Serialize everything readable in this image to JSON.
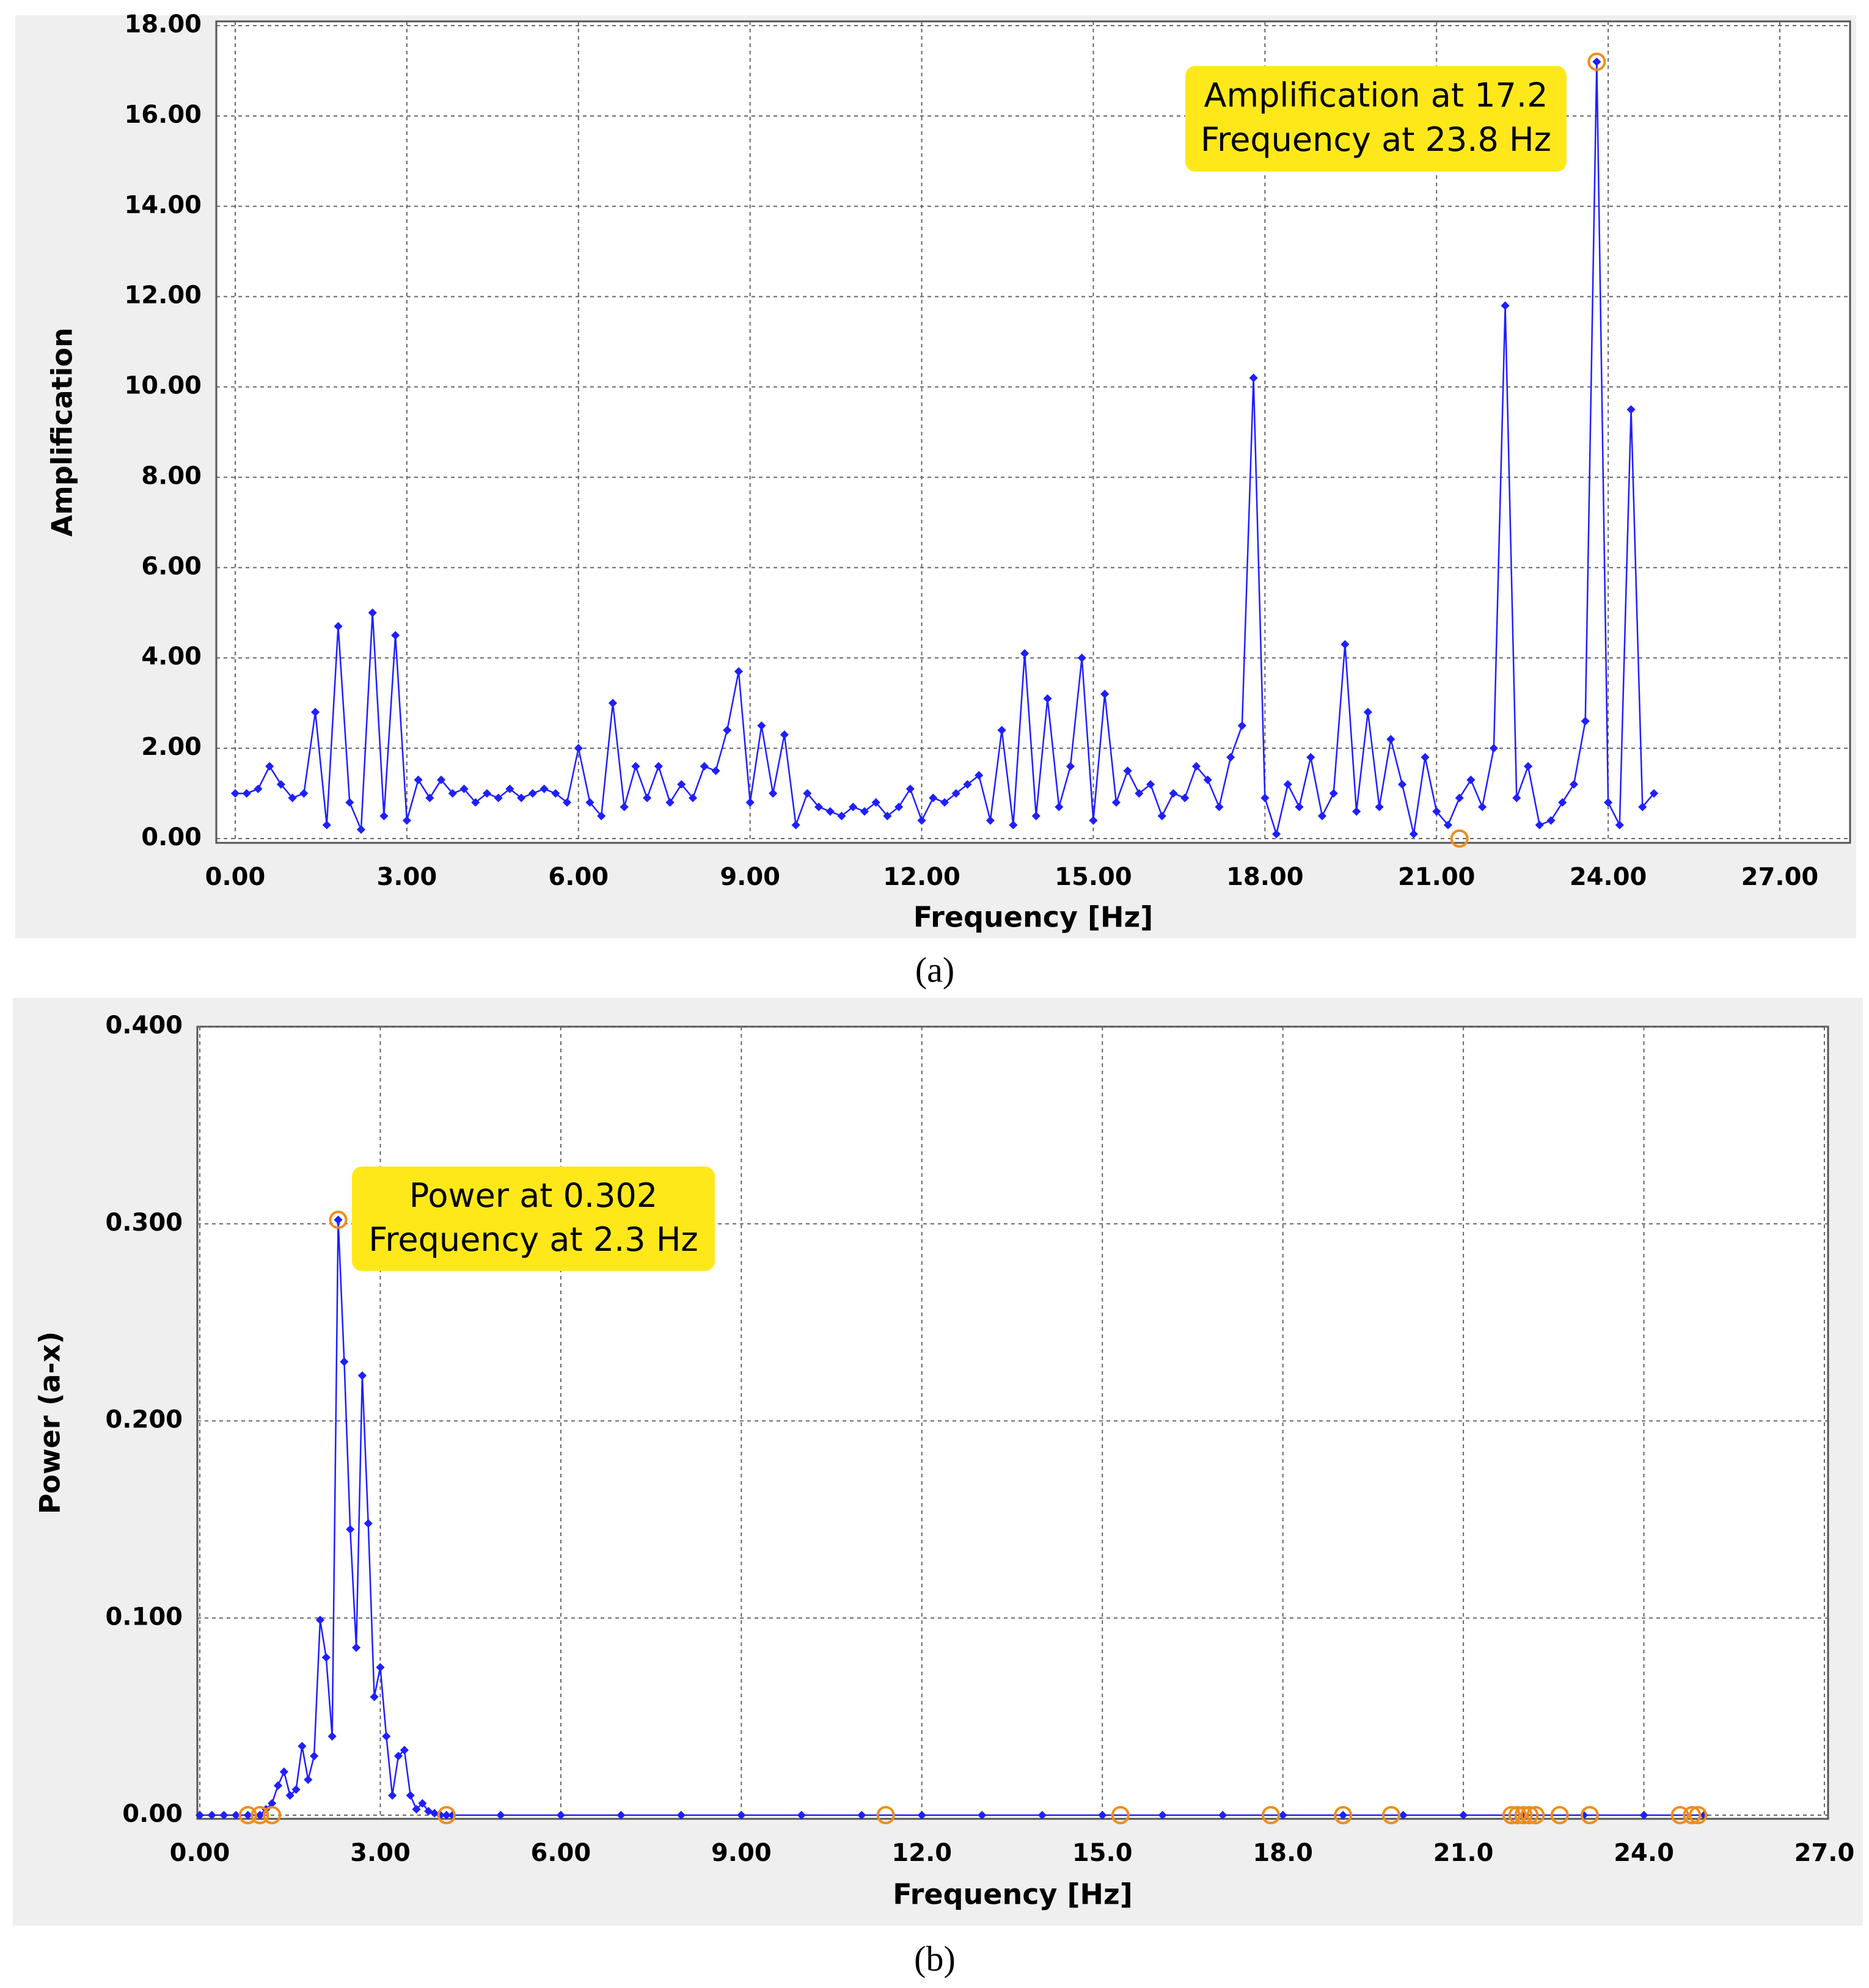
{
  "chart_data": [
    {
      "type": "line",
      "caption": "(a)",
      "x_label": "Frequency [Hz]",
      "y_label": "Amplification",
      "color": "#1f1fff",
      "x": [
        0,
        0.2,
        0.4,
        0.6,
        0.8,
        1,
        1.2,
        1.4,
        1.6,
        1.8,
        2,
        2.2,
        2.4,
        2.6,
        2.8,
        3,
        3.2,
        3.4,
        3.6,
        3.8,
        4,
        4.2,
        4.4,
        4.6,
        4.8,
        5,
        5.2,
        5.4,
        5.6,
        5.8,
        6,
        6.2,
        6.4,
        6.6,
        6.8,
        7,
        7.2,
        7.4,
        7.6,
        7.8,
        8,
        8.2,
        8.4,
        8.6,
        8.8,
        9,
        9.2,
        9.4,
        9.6,
        9.8,
        10,
        10.2,
        10.4,
        10.6,
        10.8,
        11,
        11.2,
        11.4,
        11.6,
        11.8,
        12,
        12.2,
        12.4,
        12.6,
        12.8,
        13,
        13.2,
        13.4,
        13.6,
        13.8,
        14,
        14.2,
        14.4,
        14.6,
        14.8,
        15,
        15.2,
        15.4,
        15.6,
        15.8,
        16,
        16.2,
        16.4,
        16.6,
        16.8,
        17,
        17.2,
        17.4,
        17.6,
        17.8,
        18,
        18.2,
        18.4,
        18.6,
        18.8,
        19,
        19.2,
        19.4,
        19.6,
        19.8,
        20,
        20.2,
        20.4,
        20.6,
        20.8,
        21,
        21.2,
        21.4,
        21.6,
        21.8,
        22,
        22.2,
        22.4,
        22.6,
        22.8,
        23,
        23.2,
        23.4,
        23.6,
        23.8,
        24,
        24.2,
        24.4,
        24.6,
        24.8
      ],
      "values": [
        1.0,
        1.0,
        1.1,
        1.6,
        1.2,
        0.9,
        1.0,
        2.8,
        0.3,
        4.7,
        0.8,
        0.2,
        5.0,
        0.5,
        4.5,
        0.4,
        1.3,
        0.9,
        1.3,
        1.0,
        1.1,
        0.8,
        1.0,
        0.9,
        1.1,
        0.9,
        1.0,
        1.1,
        1.0,
        0.8,
        2.0,
        0.8,
        0.5,
        3.0,
        0.7,
        1.6,
        0.9,
        1.6,
        0.8,
        1.2,
        0.9,
        1.6,
        1.5,
        2.4,
        3.7,
        0.8,
        2.5,
        1.0,
        2.3,
        0.3,
        1.0,
        0.7,
        0.6,
        0.5,
        0.7,
        0.6,
        0.8,
        0.5,
        0.7,
        1.1,
        0.4,
        0.9,
        0.8,
        1.0,
        1.2,
        1.4,
        0.4,
        2.4,
        0.3,
        4.1,
        0.5,
        3.1,
        0.7,
        1.6,
        4.0,
        0.4,
        3.2,
        0.8,
        1.5,
        1.0,
        1.2,
        0.5,
        1.0,
        0.9,
        1.6,
        1.3,
        0.7,
        1.8,
        2.5,
        10.2,
        0.9,
        0.1,
        1.2,
        0.7,
        1.8,
        0.5,
        1.0,
        4.3,
        0.6,
        2.8,
        0.7,
        2.2,
        1.2,
        0.1,
        1.8,
        0.6,
        0.3,
        0.9,
        1.3,
        0.7,
        2.0,
        11.8,
        0.9,
        1.6,
        0.3,
        0.4,
        0.8,
        1.2,
        2.6,
        17.2,
        0.8,
        0.3,
        9.5,
        0.7,
        1.0
      ],
      "xlim": [
        0,
        27
      ],
      "ylim": [
        0,
        18
      ],
      "xticks": [
        {
          "value": 0,
          "label": "0.00"
        },
        {
          "value": 3,
          "label": "3.00"
        },
        {
          "value": 6,
          "label": "6.00"
        },
        {
          "value": 9,
          "label": "9.00"
        },
        {
          "value": 12,
          "label": "12.00"
        },
        {
          "value": 15,
          "label": "15.00"
        },
        {
          "value": 18,
          "label": "18.00"
        },
        {
          "value": 21,
          "label": "21.00"
        },
        {
          "value": 24,
          "label": "24.00"
        },
        {
          "value": 27,
          "label": "27.00"
        }
      ],
      "yticks": [
        {
          "value": 0,
          "label": "0.00"
        },
        {
          "value": 2,
          "label": "2.00"
        },
        {
          "value": 4,
          "label": "4.00"
        },
        {
          "value": 6,
          "label": "6.00"
        },
        {
          "value": 8,
          "label": "8.00"
        },
        {
          "value": 10,
          "label": "10.00"
        },
        {
          "value": 12,
          "label": "12.00"
        },
        {
          "value": 14,
          "label": "14.00"
        },
        {
          "value": 16,
          "label": "16.00"
        },
        {
          "value": 18,
          "label": "18.00"
        }
      ],
      "grid": true,
      "highlights": {
        "color": "#f08c1e",
        "x": [
          23.8,
          21.4
        ],
        "y": [
          17.2,
          0
        ]
      },
      "annotation": {
        "color": "#ffe81a",
        "lines": [
          "Amplification at 17.2",
          "Frequency at 23.8 Hz"
        ]
      }
    },
    {
      "type": "line",
      "caption": "(b)",
      "x_label": "Frequency [Hz]",
      "y_label": "Power (a-x)",
      "color": "#1f1fff",
      "x": [
        0,
        0.2,
        0.4,
        0.6,
        0.8,
        1.0,
        1.1,
        1.2,
        1.3,
        1.4,
        1.5,
        1.6,
        1.7,
        1.8,
        1.9,
        2.0,
        2.1,
        2.2,
        2.3,
        2.4,
        2.5,
        2.6,
        2.7,
        2.8,
        2.9,
        3.0,
        3.1,
        3.2,
        3.3,
        3.4,
        3.5,
        3.6,
        3.7,
        3.8,
        3.9,
        4.0,
        4.1,
        4.2,
        5,
        6,
        7,
        8,
        9,
        10,
        11,
        12,
        13,
        14,
        15,
        16,
        17,
        18,
        19,
        20,
        21,
        22,
        23,
        24,
        25
      ],
      "values": [
        0,
        0,
        0,
        0,
        0,
        0,
        0.003,
        0.006,
        0.015,
        0.022,
        0.01,
        0.013,
        0.035,
        0.018,
        0.03,
        0.099,
        0.08,
        0.04,
        0.302,
        0.23,
        0.145,
        0.085,
        0.223,
        0.148,
        0.06,
        0.075,
        0.04,
        0.01,
        0.03,
        0.033,
        0.01,
        0.003,
        0.006,
        0.002,
        0.001,
        0,
        0,
        0,
        0,
        0,
        0,
        0,
        0,
        0,
        0,
        0,
        0,
        0,
        0,
        0,
        0,
        0,
        0,
        0,
        0,
        0,
        0,
        0,
        0
      ],
      "xlim": [
        0,
        27
      ],
      "ylim": [
        0,
        0.4
      ],
      "xticks": [
        {
          "value": 0,
          "label": "0.00"
        },
        {
          "value": 3,
          "label": "3.00"
        },
        {
          "value": 6,
          "label": "6.00"
        },
        {
          "value": 9,
          "label": "9.00"
        },
        {
          "value": 12,
          "label": "12.0"
        },
        {
          "value": 15,
          "label": "15.0"
        },
        {
          "value": 18,
          "label": "18.0"
        },
        {
          "value": 21,
          "label": "21.0"
        },
        {
          "value": 24,
          "label": "24.0"
        },
        {
          "value": 27,
          "label": "27.0"
        }
      ],
      "yticks": [
        {
          "value": 0,
          "label": "0.00"
        },
        {
          "value": 0.1,
          "label": "0.100"
        },
        {
          "value": 0.2,
          "label": "0.200"
        },
        {
          "value": 0.3,
          "label": "0.300"
        },
        {
          "value": 0.4,
          "label": "0.400"
        }
      ],
      "grid": true,
      "highlights": {
        "color": "#f08c1e",
        "x": [
          2.3,
          0.8,
          1.0,
          1.2,
          4.1,
          11.4,
          15.3,
          17.8,
          19.0,
          19.8,
          21.8,
          21.9,
          22.0,
          22.1,
          22.2,
          22.6,
          23.1,
          24.6,
          24.8,
          24.9
        ],
        "y": [
          0.302,
          0,
          0,
          0,
          0,
          0,
          0,
          0,
          0,
          0,
          0,
          0,
          0,
          0,
          0,
          0,
          0,
          0,
          0,
          0
        ]
      },
      "annotation": {
        "color": "#ffe81a",
        "lines": [
          "Power at 0.302",
          "Frequency at 2.3 Hz"
        ]
      }
    }
  ]
}
